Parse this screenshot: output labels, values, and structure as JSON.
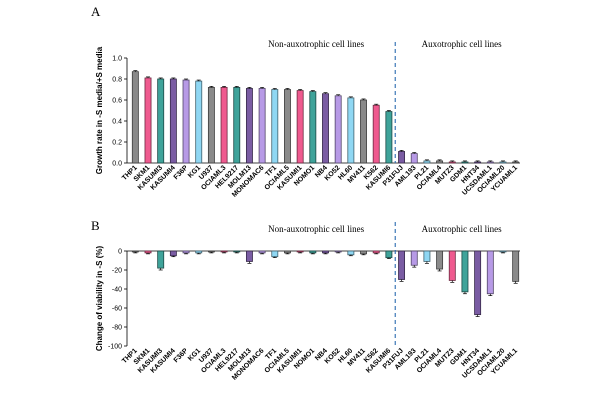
{
  "chart_data": [
    {
      "panel": "A",
      "type": "bar",
      "title": "",
      "xlabel": "",
      "ylabel": "Growth rate in -S media/+S media",
      "ylim": [
        0,
        1.0
      ],
      "yticks": [
        "0.0",
        "0.2",
        "0.4",
        "0.6",
        "0.8",
        "1.0"
      ],
      "region_labels": [
        "Non-auxotrophic cell lines",
        "Auxotrophic cell lines"
      ],
      "categories": [
        "THP1",
        "SKM1",
        "KASUMI3",
        "KASUMI4",
        "F36P",
        "KG1",
        "U937",
        "OCIAML3",
        "HEL9217",
        "MOLM13",
        "MONOMAC6",
        "TF1",
        "OCIAML5",
        "KASUMI1",
        "NOMO1",
        "NB4",
        "KO52",
        "HL60",
        "MV411",
        "K562",
        "KASUMI6",
        "P31FUJ",
        "AML193",
        "PL21",
        "OCIAML4",
        "MUTZ3",
        "GDM1",
        "HNT34",
        "UCSDAML1",
        "OCIAML20",
        "YCUAML1"
      ],
      "values": [
        0.87,
        0.81,
        0.8,
        0.8,
        0.79,
        0.78,
        0.72,
        0.72,
        0.72,
        0.71,
        0.71,
        0.7,
        0.7,
        0.69,
        0.68,
        0.66,
        0.64,
        0.62,
        0.6,
        0.55,
        0.49,
        0.11,
        0.09,
        0.02,
        0.02,
        0.01,
        0.01,
        0.01,
        0.01,
        0.01,
        0.01
      ],
      "errors": [
        0.01,
        0.01,
        0.01,
        0.01,
        0.01,
        0.01,
        0.01,
        0.01,
        0.01,
        0.01,
        0.01,
        0.01,
        0.01,
        0.01,
        0.01,
        0.01,
        0.01,
        0.01,
        0.01,
        0.01,
        0.01,
        0.01,
        0.01,
        0.01,
        0.01,
        0.01,
        0.01,
        0.01,
        0.01,
        0.01,
        0.01
      ],
      "colors": [
        "#8a8a8a",
        "#ef5a8f",
        "#3fa39a",
        "#7a5ca3",
        "#b79ae6",
        "#8fd7f3",
        "#8a8a8a",
        "#ef5a8f",
        "#3fa39a",
        "#7a5ca3",
        "#b79ae6",
        "#8fd7f3",
        "#8a8a8a",
        "#ef5a8f",
        "#3fa39a",
        "#7a5ca3",
        "#b79ae6",
        "#8fd7f3",
        "#8a8a8a",
        "#ef5a8f",
        "#3fa39a",
        "#7a5ca3",
        "#b79ae6",
        "#8fd7f3",
        "#8a8a8a",
        "#ef5a8f",
        "#3fa39a",
        "#7a5ca3",
        "#b79ae6",
        "#8fd7f3",
        "#8a8a8a"
      ],
      "divider_after_index": 20
    },
    {
      "panel": "B",
      "type": "bar",
      "title": "",
      "xlabel": "",
      "ylabel": "Change of viability in -S (%)",
      "ylim": [
        -100,
        0
      ],
      "yticks": [
        "0",
        "-20",
        "-40",
        "-60",
        "-80",
        "-100"
      ],
      "region_labels": [
        "Non-auxotrophic cell lines",
        "Auxotrophic cell lines"
      ],
      "categories": [
        "THP1",
        "SKM1",
        "KASUMI3",
        "KASUMI4",
        "F36P",
        "KG1",
        "U937",
        "OCIAML3",
        "HEL9217",
        "MOLM13",
        "MONOMAC6",
        "TF1",
        "OCIAML5",
        "KASUMI1",
        "NOMO1",
        "NB4",
        "KO52",
        "HL60",
        "MV411",
        "K562",
        "KASUMI6",
        "P31FUJ",
        "AML193",
        "PL21",
        "OCIAML4",
        "MUTZ3",
        "GDM1",
        "HNT34",
        "UCSDAML1",
        "OCIAML20",
        "YCUAML1"
      ],
      "values": [
        -1,
        -2,
        -18,
        -5,
        -2,
        -2,
        -1,
        -1,
        -1,
        -11,
        -2,
        -6,
        -2,
        -1,
        -2,
        -2,
        -1,
        -4,
        -3,
        -2,
        -7,
        -30,
        -15,
        -11,
        -19,
        -31,
        -43,
        -67,
        -45,
        -1,
        -32
      ],
      "errors": [
        1,
        1,
        2,
        1,
        1,
        1,
        1,
        1,
        1,
        2,
        1,
        1,
        1,
        1,
        1,
        1,
        1,
        1,
        1,
        1,
        1,
        2,
        2,
        2,
        2,
        2,
        2,
        2,
        2,
        1,
        2
      ],
      "colors": [
        "#8a8a8a",
        "#ef5a8f",
        "#3fa39a",
        "#7a5ca3",
        "#b79ae6",
        "#8fd7f3",
        "#8a8a8a",
        "#ef5a8f",
        "#3fa39a",
        "#7a5ca3",
        "#b79ae6",
        "#8fd7f3",
        "#8a8a8a",
        "#ef5a8f",
        "#3fa39a",
        "#7a5ca3",
        "#b79ae6",
        "#8fd7f3",
        "#8a8a8a",
        "#ef5a8f",
        "#3fa39a",
        "#7a5ca3",
        "#b79ae6",
        "#8fd7f3",
        "#8a8a8a",
        "#ef5a8f",
        "#3fa39a",
        "#7a5ca3",
        "#b79ae6",
        "#8fd7f3",
        "#8a8a8a"
      ],
      "divider_after_index": 20
    }
  ]
}
